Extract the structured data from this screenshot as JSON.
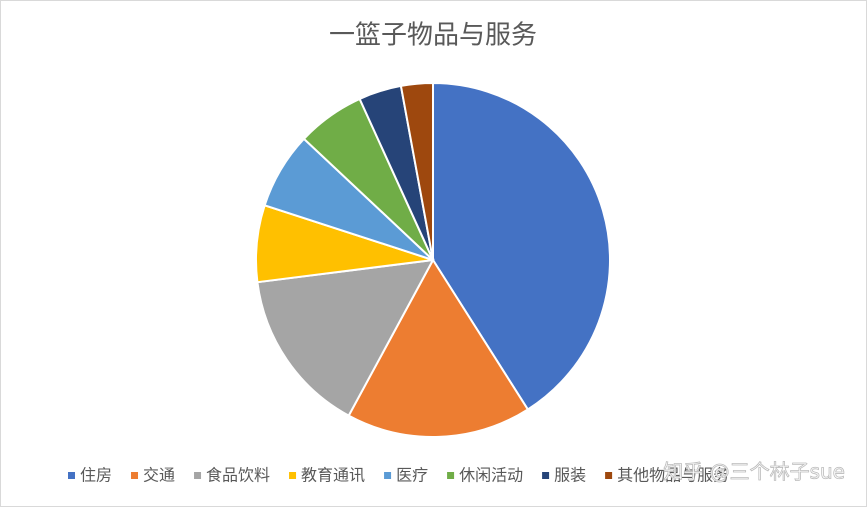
{
  "chart_data": {
    "type": "pie",
    "title": "一篮子物品与服务",
    "categories": [
      "住房",
      "交通",
      "食品饮料",
      "教育通讯",
      "医疗",
      "休闲活动",
      "服装",
      "其他物品与服务"
    ],
    "values": [
      41.0,
      16.9,
      15.1,
      7.0,
      7.0,
      6.2,
      3.9,
      2.9
    ],
    "colors": [
      "#4472c4",
      "#ed7d31",
      "#a5a5a5",
      "#ffc000",
      "#5b9bd5",
      "#70ad47",
      "#264478",
      "#9e480e"
    ],
    "legend": "bottom",
    "watermark": "知乎 @三个林子sue"
  }
}
